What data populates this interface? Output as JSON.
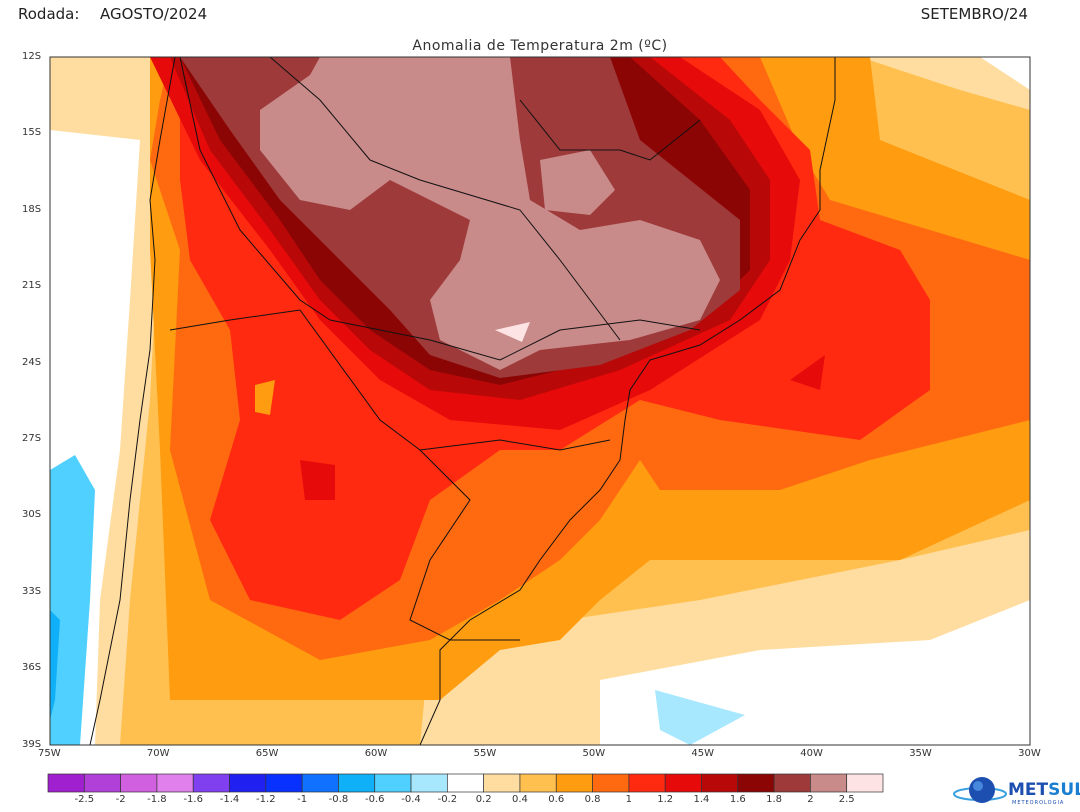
{
  "header": {
    "run_label": "Rodada:",
    "run_value": "AGOSTO/2024",
    "target_month": "SETEMBRO/24"
  },
  "map": {
    "title": "Anomalia de Temperatura 2m (ºC)",
    "lat_ticks": [
      "12S",
      "15S",
      "18S",
      "21S",
      "24S",
      "27S",
      "30S",
      "33S",
      "36S",
      "39S"
    ],
    "lon_ticks": [
      "75W",
      "70W",
      "65W",
      "60W",
      "55W",
      "50W",
      "45W",
      "40W",
      "35W",
      "30W"
    ],
    "extent": {
      "lon": [
        -75,
        -30
      ],
      "lat": [
        -12,
        -39
      ]
    }
  },
  "colorbar": {
    "colors": [
      "#a020d0",
      "#b040d8",
      "#d060e0",
      "#e080ec",
      "#8040f0",
      "#2020f0",
      "#0830ff",
      "#1070ff",
      "#10b0f8",
      "#50d0ff",
      "#a8e8ff",
      "#ffffff",
      "#ffdda0",
      "#ffc050",
      "#ff9c10",
      "#ff6a10",
      "#ff2a10",
      "#e60a0a",
      "#b80808",
      "#8c0505",
      "#9e3a3a",
      "#c98a8a",
      "#fde3e3"
    ],
    "labels": [
      "-2.5",
      "-2",
      "-1.8",
      "-1.6",
      "-1.4",
      "-1.2",
      "-1",
      "-0.8",
      "-0.6",
      "-0.4",
      "-0.2",
      "0.2",
      "0.4",
      "0.6",
      "0.8",
      "1",
      "1.2",
      "1.4",
      "1.6",
      "1.8",
      "2",
      "2.5"
    ]
  },
  "logo": {
    "name": "METSUL",
    "tagline": "METEOROLOGIA"
  }
}
